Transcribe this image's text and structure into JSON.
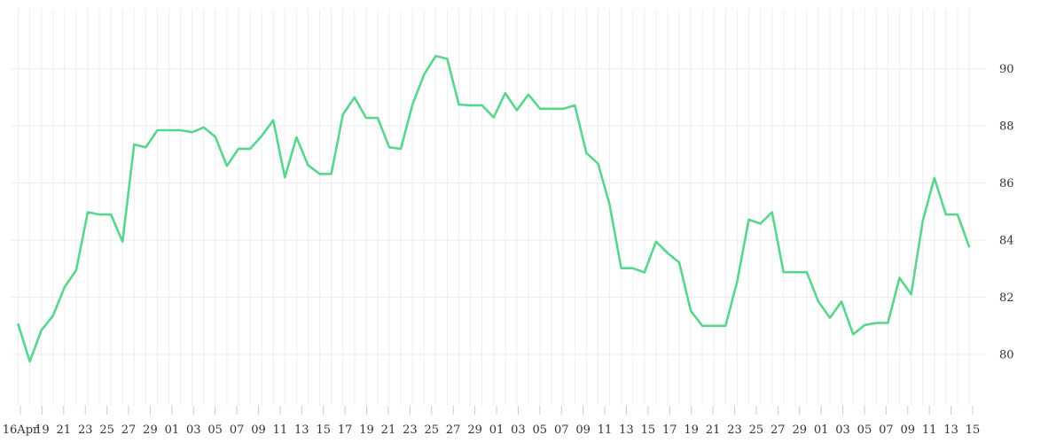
{
  "chart_data": {
    "type": "line",
    "title": "",
    "xlabel": "",
    "ylabel": "",
    "x_tick_labels": [
      "16Apr",
      "19",
      "21",
      "23",
      "25",
      "27",
      "29",
      "01",
      "03",
      "05",
      "07",
      "09",
      "11",
      "13",
      "15",
      "17",
      "19",
      "21",
      "23",
      "25",
      "27",
      "29",
      "01",
      "03",
      "05",
      "07",
      "09",
      "11",
      "13",
      "15",
      "17",
      "19",
      "21",
      "23",
      "25",
      "27",
      "29",
      "01",
      "03",
      "05",
      "07",
      "09",
      "11",
      "13",
      "15"
    ],
    "y_ticks": [
      80,
      82,
      84,
      86,
      88,
      90
    ],
    "ylim": [
      78.2,
      92.1
    ],
    "grid": true,
    "y_axis_side": "right",
    "colors": {
      "line": "#58d68d",
      "grid": "#eeeeee"
    },
    "series": [
      {
        "values": [
          81.05,
          79.75,
          80.85,
          81.35,
          82.35,
          82.95,
          84.98,
          84.9,
          84.9,
          83.95,
          87.35,
          87.25,
          87.85,
          87.85,
          87.85,
          87.78,
          87.95,
          87.62,
          86.6,
          87.2,
          87.2,
          87.65,
          88.2,
          86.2,
          87.6,
          86.62,
          86.32,
          86.32,
          88.4,
          89.0,
          88.28,
          88.28,
          87.25,
          87.2,
          88.75,
          89.8,
          90.45,
          90.35,
          88.75,
          88.72,
          88.72,
          88.3,
          89.15,
          88.55,
          89.1,
          88.6,
          88.6,
          88.6,
          88.72,
          87.05,
          86.68,
          85.25,
          83.02,
          83.02,
          82.87,
          83.95,
          83.55,
          83.22,
          81.52,
          81.0,
          81.0,
          81.0,
          82.55,
          84.72,
          84.58,
          84.98,
          82.88,
          82.88,
          82.88,
          81.85,
          81.28,
          81.85,
          80.7,
          81.03,
          81.1,
          81.1,
          82.68,
          82.1,
          84.68,
          86.18,
          84.9,
          84.9,
          83.78
        ]
      }
    ]
  }
}
